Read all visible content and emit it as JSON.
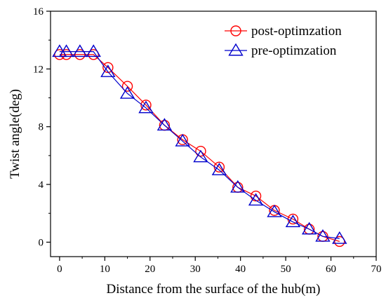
{
  "chart_data": {
    "type": "line",
    "xlabel": "Distance from the surface of the hub(m)",
    "ylabel": "Twist angle(deg)",
    "xlim": [
      -2,
      70
    ],
    "ylim": [
      -1,
      16
    ],
    "xticks": [
      0,
      10,
      20,
      30,
      40,
      50,
      60,
      70
    ],
    "yticks": [
      0,
      4,
      8,
      12,
      16
    ],
    "grid": false,
    "legend_position": "top-right",
    "series": [
      {
        "name": "post-optimzation",
        "color": "#ff0000",
        "marker": "circle",
        "x": [
          0,
          1.5,
          4.5,
          7.5,
          10.7,
          15.0,
          19.1,
          23.2,
          27.2,
          31.2,
          35.3,
          39.4,
          43.4,
          47.5,
          51.6,
          55.2,
          58.2,
          61.9
        ],
        "y": [
          13.0,
          13.0,
          13.0,
          13.0,
          12.1,
          10.8,
          9.5,
          8.1,
          7.1,
          6.3,
          5.2,
          3.8,
          3.2,
          2.2,
          1.6,
          0.9,
          0.4,
          0.05
        ]
      },
      {
        "name": "pre-optimzation",
        "color": "#0000cc",
        "marker": "triangle",
        "x": [
          0,
          1.5,
          4.5,
          7.5,
          10.7,
          15.0,
          19.1,
          23.2,
          27.2,
          31.2,
          35.3,
          39.4,
          43.4,
          47.5,
          51.6,
          55.2,
          58.2,
          61.9
        ],
        "y": [
          13.2,
          13.2,
          13.2,
          13.2,
          11.8,
          10.3,
          9.3,
          8.1,
          7.0,
          5.9,
          5.0,
          3.8,
          2.9,
          2.1,
          1.4,
          0.9,
          0.4,
          0.25
        ]
      }
    ]
  }
}
